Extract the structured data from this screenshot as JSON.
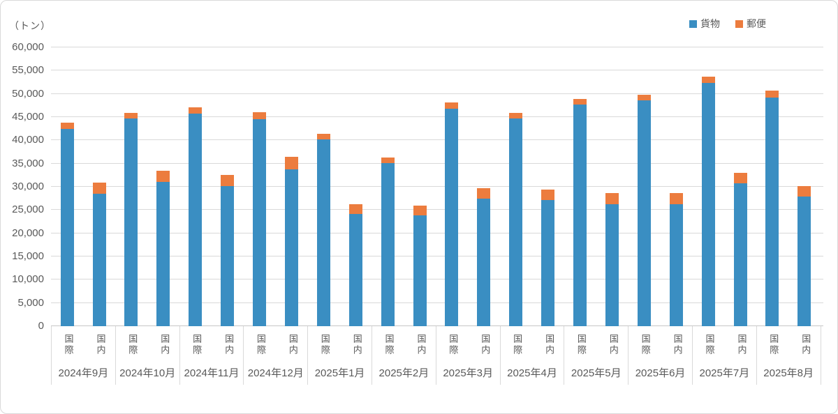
{
  "unit_label": "（トン）",
  "legend": {
    "items": [
      {
        "label": "貨物",
        "color": "#3a8ec2"
      },
      {
        "label": "郵便",
        "color": "#ec7c3e"
      }
    ]
  },
  "colors": {
    "cargo_blue": "#3a8ec2",
    "mail_orange": "#ec7c3e",
    "gridline": "#d9d9d9",
    "text": "#595959"
  },
  "chart_data": {
    "type": "bar",
    "stacked": true,
    "title": "",
    "unit": "トン",
    "legend_position": "top-right",
    "grid": true,
    "ylim": [
      0,
      60000
    ],
    "ytick_interval": 5000,
    "ytick_labels": [
      "0",
      "5,000",
      "10,000",
      "15,000",
      "20,000",
      "25,000",
      "30,000",
      "35,000",
      "40,000",
      "45,000",
      "50,000",
      "55,000",
      "60,000"
    ],
    "categories": [
      "2024年9月",
      "2024年10月",
      "2024年11月",
      "2024年12月",
      "2025年1月",
      "2025年2月",
      "2025年3月",
      "2025年4月",
      "2025年5月",
      "2025年6月",
      "2025年7月",
      "2025年8月"
    ],
    "sub_categories": [
      "国際",
      "国内"
    ],
    "series": [
      {
        "name": "貨物",
        "color": "#3a8ec2",
        "values": {
          "国際": [
            42500,
            44650,
            45750,
            44550,
            40200,
            35100,
            46800,
            44650,
            47650,
            48600,
            52400,
            49250
          ],
          "国内": [
            28550,
            31050,
            30150,
            33800,
            24100,
            23900,
            27450,
            27150,
            26300,
            26200,
            30800,
            27950
          ]
        }
      },
      {
        "name": "郵便",
        "color": "#ec7c3e",
        "values": {
          "国際": [
            1250,
            1300,
            1300,
            1500,
            1200,
            1150,
            1350,
            1250,
            1300,
            1150,
            1250,
            1450
          ],
          "国内": [
            2350,
            2450,
            2350,
            2600,
            2100,
            2000,
            2200,
            2250,
            2400,
            2500,
            2250,
            2200
          ]
        }
      }
    ]
  }
}
